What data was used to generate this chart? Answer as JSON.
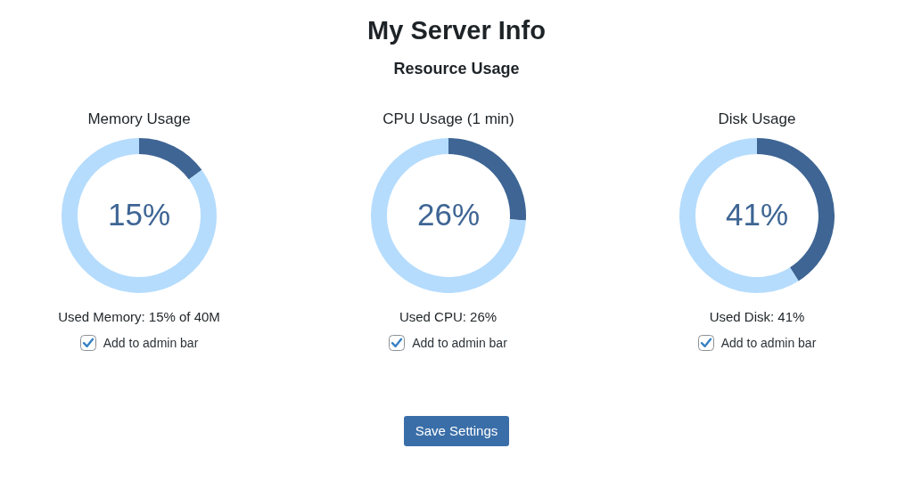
{
  "chart_data": [
    {
      "type": "other",
      "title": "My Server Info",
      "subtitle": "Resource Usage"
    },
    {
      "type": "donut",
      "title": "Memory Usage",
      "categories": [
        null,
        null
      ],
      "values": [
        15,
        85
      ],
      "colors": [
        "#3e6594",
        "#b5dcfd"
      ],
      "value_labels": [
        "15%",
        null
      ],
      "annotations": [
        "Used Memory: 15% of 40M",
        "Add to admin bar"
      ]
    },
    {
      "type": "donut",
      "title": "CPU Usage (1 min)",
      "categories": [
        null,
        null
      ],
      "values": [
        26,
        74
      ],
      "colors": [
        "#3e6594",
        "#b5dcfd"
      ],
      "value_labels": [
        "26%",
        null
      ],
      "annotations": [
        "Used CPU: 26%",
        "Add to admin bar"
      ]
    },
    {
      "type": "donut",
      "title": "Disk Usage",
      "categories": [
        null,
        null
      ],
      "values": [
        41,
        59
      ],
      "colors": [
        "#3e6594",
        "#b5dcfd"
      ],
      "value_labels": [
        "41%",
        null
      ],
      "annotations": [
        "Used Disk: 41%",
        "Add to admin bar"
      ]
    },
    {
      "type": "other",
      "annotations": [
        "Save Settings"
      ]
    }
  ]
}
